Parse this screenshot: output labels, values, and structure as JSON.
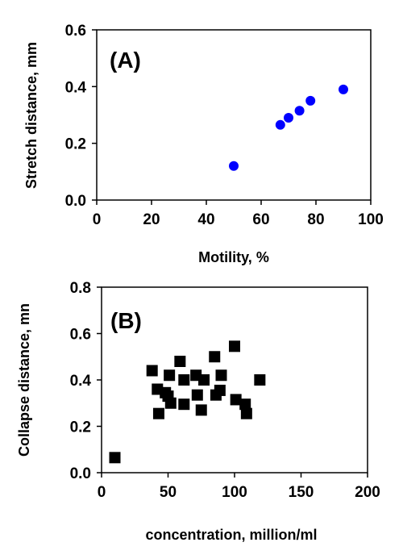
{
  "chart_data": [
    {
      "type": "scatter",
      "panel_label": "(A)",
      "xlabel": "Motility, %",
      "ylabel": "Stretch distance, mm",
      "xlim": [
        0,
        100
      ],
      "ylim": [
        0.0,
        0.6
      ],
      "x_ticks": [
        "0",
        "20",
        "40",
        "60",
        "80",
        "100"
      ],
      "y_ticks": [
        "0.0",
        "0.2",
        "0.4",
        "0.6"
      ],
      "grid": false,
      "marker": "circle",
      "color": "#0000ff",
      "points": [
        {
          "x": 50,
          "y": 0.12
        },
        {
          "x": 67,
          "y": 0.265
        },
        {
          "x": 70,
          "y": 0.29
        },
        {
          "x": 74,
          "y": 0.315
        },
        {
          "x": 78,
          "y": 0.35
        },
        {
          "x": 90,
          "y": 0.39
        }
      ]
    },
    {
      "type": "scatter",
      "panel_label": "(B)",
      "xlabel": "concentration, million/ml",
      "ylabel": "Collapse distance, mn",
      "xlim": [
        0,
        200
      ],
      "ylim": [
        0.0,
        0.8
      ],
      "x_ticks": [
        "0",
        "50",
        "100",
        "150",
        "200"
      ],
      "y_ticks": [
        "0.0",
        "0.2",
        "0.4",
        "0.6",
        "0.8"
      ],
      "grid": false,
      "marker": "square",
      "color": "#000000",
      "points": [
        {
          "x": 10,
          "y": 0.065
        },
        {
          "x": 38,
          "y": 0.44
        },
        {
          "x": 42,
          "y": 0.36
        },
        {
          "x": 43,
          "y": 0.255
        },
        {
          "x": 48,
          "y": 0.345
        },
        {
          "x": 50,
          "y": 0.33
        },
        {
          "x": 51,
          "y": 0.42
        },
        {
          "x": 52,
          "y": 0.3
        },
        {
          "x": 59,
          "y": 0.48
        },
        {
          "x": 62,
          "y": 0.4
        },
        {
          "x": 62,
          "y": 0.295
        },
        {
          "x": 71,
          "y": 0.42
        },
        {
          "x": 72,
          "y": 0.335
        },
        {
          "x": 75,
          "y": 0.27
        },
        {
          "x": 77,
          "y": 0.4
        },
        {
          "x": 85,
          "y": 0.5
        },
        {
          "x": 86,
          "y": 0.335
        },
        {
          "x": 89,
          "y": 0.355
        },
        {
          "x": 90,
          "y": 0.42
        },
        {
          "x": 100,
          "y": 0.545
        },
        {
          "x": 101,
          "y": 0.315
        },
        {
          "x": 108,
          "y": 0.295
        },
        {
          "x": 109,
          "y": 0.255
        },
        {
          "x": 119,
          "y": 0.4
        }
      ]
    }
  ]
}
